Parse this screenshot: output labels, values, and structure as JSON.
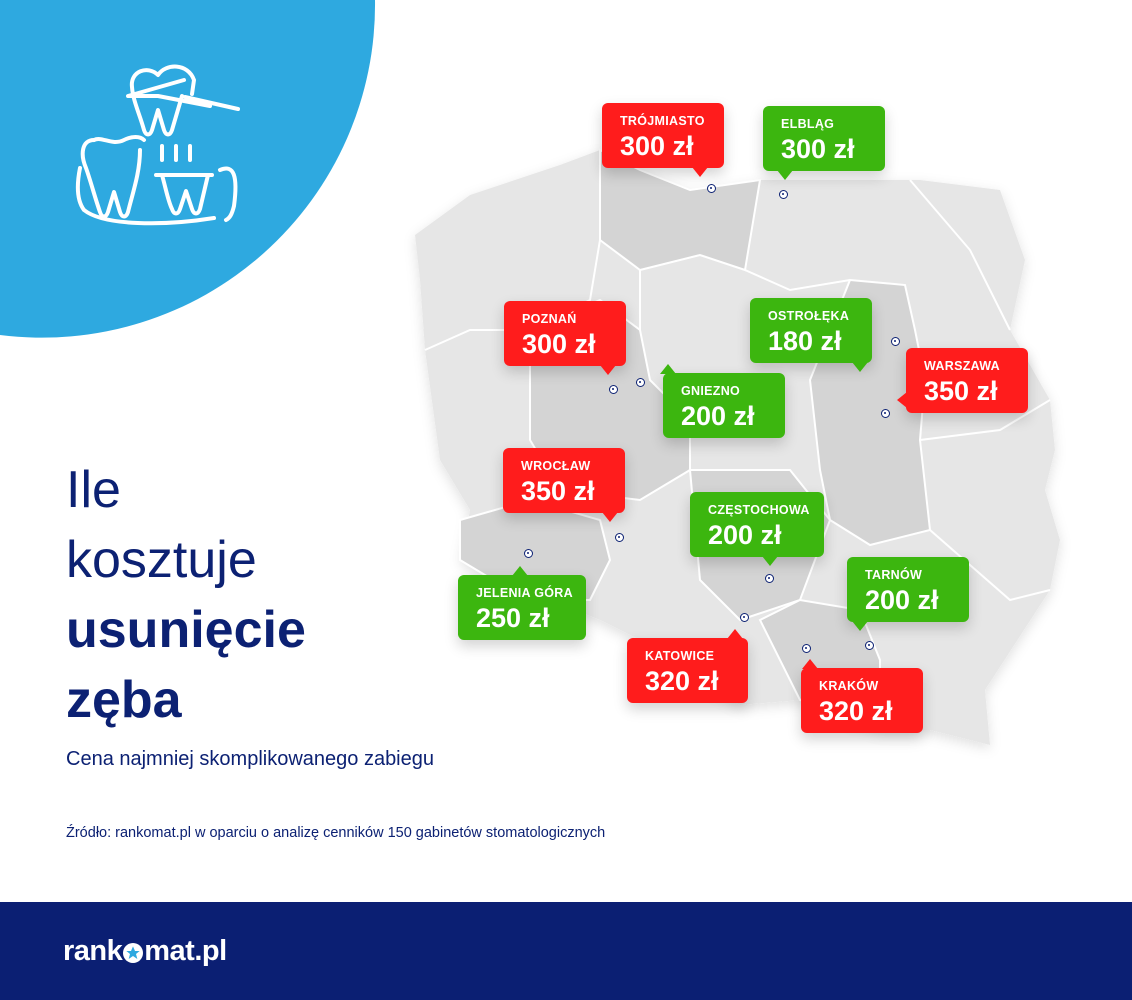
{
  "title": {
    "line1": "Ile",
    "line2": "kosztuje",
    "line3": "usunięcie",
    "line4": "zęba"
  },
  "subtitle": "Cena najmniej skomplikowanego zabiegu",
  "source": "Źródło: rankomat.pl w oparciu o analizę cenników 150 gabinetów stomatologicznych",
  "logo": {
    "left": "rank",
    "right": "mat.pl"
  },
  "icon": "tooth-extraction-icon",
  "colors": {
    "expensive": "#ff1c1c",
    "cheap": "#3cb60f",
    "navy": "#0b1f73",
    "accent_blue": "#2ea9e0",
    "map": "#e3e3e3"
  },
  "cities": [
    {
      "city": "TRÓJMIASTO",
      "price": "300 zł",
      "color": "red"
    },
    {
      "city": "ELBLĄG",
      "price": "300 zł",
      "color": "green"
    },
    {
      "city": "POZNAŃ",
      "price": "300 zł",
      "color": "red"
    },
    {
      "city": "OSTROŁĘKA",
      "price": "180 zł",
      "color": "green"
    },
    {
      "city": "WARSZAWA",
      "price": "350 zł",
      "color": "red"
    },
    {
      "city": "GNIEZNO",
      "price": "200 zł",
      "color": "green"
    },
    {
      "city": "WROCŁAW",
      "price": "350 zł",
      "color": "red"
    },
    {
      "city": "CZĘSTOCHOWA",
      "price": "200 zł",
      "color": "green"
    },
    {
      "city": "JELENIA GÓRA",
      "price": "250 zł",
      "color": "green"
    },
    {
      "city": "TARNÓW",
      "price": "200 zł",
      "color": "green"
    },
    {
      "city": "KATOWICE",
      "price": "320 zł",
      "color": "red"
    },
    {
      "city": "KRAKÓW",
      "price": "320 zł",
      "color": "red"
    }
  ]
}
